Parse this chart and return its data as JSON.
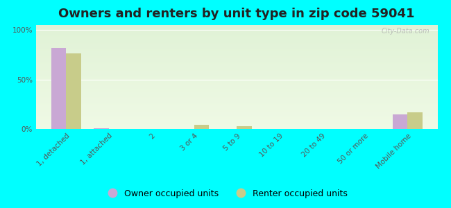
{
  "title": "Owners and renters by unit type in zip code 59041",
  "categories": [
    "1, detached",
    "1, attached",
    "2",
    "3 or 4",
    "5 to 9",
    "10 to 19",
    "20 to 49",
    "50 or more",
    "Mobile home"
  ],
  "owner_values": [
    82,
    1,
    0,
    0,
    0,
    0,
    0,
    0,
    15
  ],
  "renter_values": [
    76,
    0,
    0,
    4,
    3,
    0,
    0,
    0,
    17
  ],
  "owner_color": "#c9a8d4",
  "renter_color": "#c8cc8a",
  "background_color": "#00ffff",
  "ylabel_ticks": [
    "0%",
    "50%",
    "100%"
  ],
  "ytick_values": [
    0,
    50,
    100
  ],
  "ylim": [
    0,
    105
  ],
  "legend_owner": "Owner occupied units",
  "legend_renter": "Renter occupied units",
  "bar_width": 0.35,
  "title_fontsize": 13,
  "tick_fontsize": 7.5,
  "legend_fontsize": 9,
  "watermark": "City-Data.com"
}
